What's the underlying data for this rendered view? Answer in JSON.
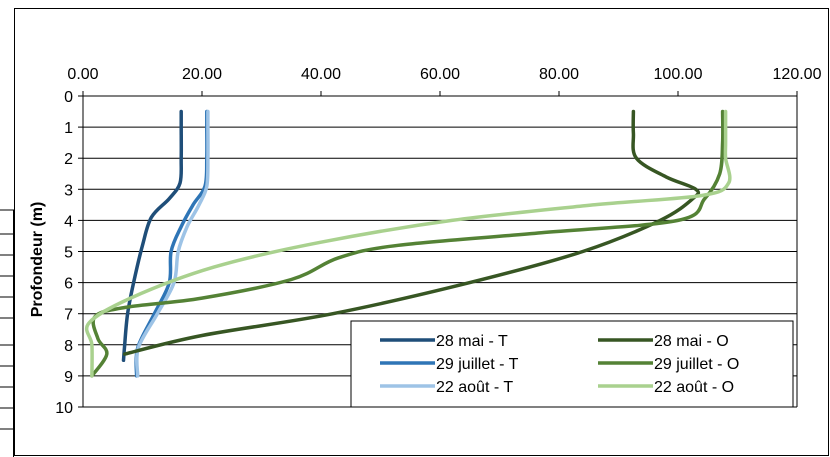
{
  "chart_data": {
    "type": "line",
    "title": "",
    "xlabel": "",
    "ylabel": "Profondeur (m)",
    "x_axis_position": "top",
    "xlim": [
      0,
      120
    ],
    "ylim": [
      0,
      10
    ],
    "y_inverted": true,
    "x_ticks": [
      "0.00",
      "20.00",
      "40.00",
      "60.00",
      "80.00",
      "100.00",
      "120.00"
    ],
    "y_ticks": [
      "0",
      "1",
      "2",
      "3",
      "4",
      "5",
      "6",
      "7",
      "8",
      "9",
      "10"
    ],
    "grid": "horizontal",
    "legend_position": "bottom-right",
    "series": [
      {
        "name": "28 mai - T",
        "color": "#1f4e79",
        "points": [
          [
            16.5,
            0.5
          ],
          [
            16.5,
            1
          ],
          [
            16.5,
            2
          ],
          [
            16.3,
            2.8
          ],
          [
            14.5,
            3.3
          ],
          [
            11.5,
            3.9
          ],
          [
            10,
            4.8
          ],
          [
            8.5,
            6
          ],
          [
            7.5,
            7
          ],
          [
            7,
            8
          ],
          [
            6.8,
            8.5
          ]
        ]
      },
      {
        "name": "29 juillet - T",
        "color": "#2e75b6",
        "points": [
          [
            20.8,
            0.5
          ],
          [
            20.8,
            1
          ],
          [
            20.8,
            2
          ],
          [
            20.5,
            2.9
          ],
          [
            18.5,
            3.5
          ],
          [
            16.5,
            4.2
          ],
          [
            14.8,
            5
          ],
          [
            14.5,
            6
          ],
          [
            12,
            7
          ],
          [
            9.2,
            8.1
          ],
          [
            9,
            9
          ]
        ]
      },
      {
        "name": "22 août - T",
        "color": "#9dc3e6",
        "points": [
          [
            21,
            0.5
          ],
          [
            21,
            1
          ],
          [
            21,
            2
          ],
          [
            20.8,
            2.9
          ],
          [
            19.5,
            3.5
          ],
          [
            17.5,
            4.2
          ],
          [
            16,
            5
          ],
          [
            15.3,
            6
          ],
          [
            12.5,
            7
          ],
          [
            9.3,
            8.1
          ],
          [
            9.2,
            9
          ]
        ]
      },
      {
        "name": "28 mai - O",
        "color": "#375623",
        "points": [
          [
            92.5,
            0.5
          ],
          [
            92.5,
            1.2
          ],
          [
            93,
            2
          ],
          [
            98,
            2.6
          ],
          [
            103,
            3
          ],
          [
            102.5,
            3.3
          ],
          [
            97,
            4
          ],
          [
            84,
            5
          ],
          [
            65,
            6
          ],
          [
            42,
            7
          ],
          [
            20,
            7.7
          ],
          [
            7,
            8.3
          ]
        ]
      },
      {
        "name": "29 juillet - O",
        "color": "#548235",
        "points": [
          [
            107.5,
            0.5
          ],
          [
            107.5,
            1.5
          ],
          [
            107,
            2.5
          ],
          [
            104.5,
            3.3
          ],
          [
            100,
            4
          ],
          [
            77,
            4.4
          ],
          [
            53,
            4.8
          ],
          [
            43,
            5.2
          ],
          [
            35,
            5.9
          ],
          [
            20,
            6.5
          ],
          [
            7,
            6.8
          ],
          [
            2,
            7.1
          ],
          [
            2.5,
            7.8
          ],
          [
            4,
            8.3
          ],
          [
            1.5,
            9
          ]
        ]
      },
      {
        "name": "22 août - O",
        "color": "#a9d18e",
        "points": [
          [
            108,
            0.5
          ],
          [
            108,
            1.5
          ],
          [
            108,
            2
          ],
          [
            108.5,
            2.8
          ],
          [
            104,
            3.2
          ],
          [
            86,
            3.5
          ],
          [
            62,
            4
          ],
          [
            40,
            4.7
          ],
          [
            22,
            5.5
          ],
          [
            8,
            6.5
          ],
          [
            1,
            7.3
          ],
          [
            1.5,
            8
          ],
          [
            1.5,
            9
          ]
        ]
      }
    ]
  }
}
